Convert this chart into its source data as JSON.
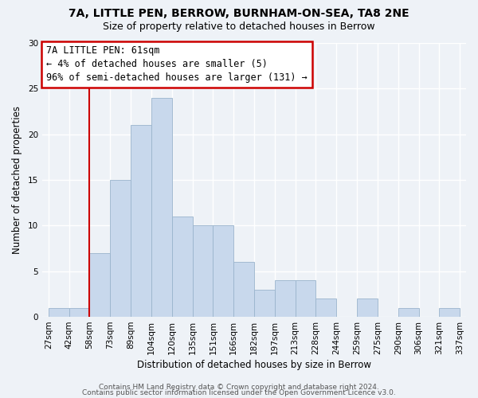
{
  "title": "7A, LITTLE PEN, BERROW, BURNHAM-ON-SEA, TA8 2NE",
  "subtitle": "Size of property relative to detached houses in Berrow",
  "xlabel": "Distribution of detached houses by size in Berrow",
  "ylabel": "Number of detached properties",
  "bar_color": "#c8d8ec",
  "bar_edge_color": "#9ab4cc",
  "bin_labels": [
    "27sqm",
    "42sqm",
    "58sqm",
    "73sqm",
    "89sqm",
    "104sqm",
    "120sqm",
    "135sqm",
    "151sqm",
    "166sqm",
    "182sqm",
    "197sqm",
    "213sqm",
    "228sqm",
    "244sqm",
    "259sqm",
    "275sqm",
    "290sqm",
    "306sqm",
    "321sqm",
    "337sqm"
  ],
  "bar_values": [
    1,
    1,
    7,
    15,
    21,
    24,
    11,
    10,
    10,
    6,
    3,
    4,
    4,
    2,
    0,
    2,
    0,
    1,
    0,
    1
  ],
  "ylim": [
    0,
    30
  ],
  "yticks": [
    0,
    5,
    10,
    15,
    20,
    25,
    30
  ],
  "annotation_line1": "7A LITTLE PEN: 61sqm",
  "annotation_line2": "← 4% of detached houses are smaller (5)",
  "annotation_line3": "96% of semi-detached houses are larger (131) →",
  "annotation_box_color": "#ffffff",
  "annotation_box_edge_color": "#cc0000",
  "vline_color": "#cc0000",
  "vline_x_index": 2,
  "footer_line1": "Contains HM Land Registry data © Crown copyright and database right 2024.",
  "footer_line2": "Contains public sector information licensed under the Open Government Licence v3.0.",
  "background_color": "#eef2f7",
  "grid_color": "#ffffff",
  "title_fontsize": 10,
  "subtitle_fontsize": 9,
  "axis_label_fontsize": 8.5,
  "tick_fontsize": 7.5,
  "annotation_fontsize": 8.5,
  "footer_fontsize": 6.5
}
